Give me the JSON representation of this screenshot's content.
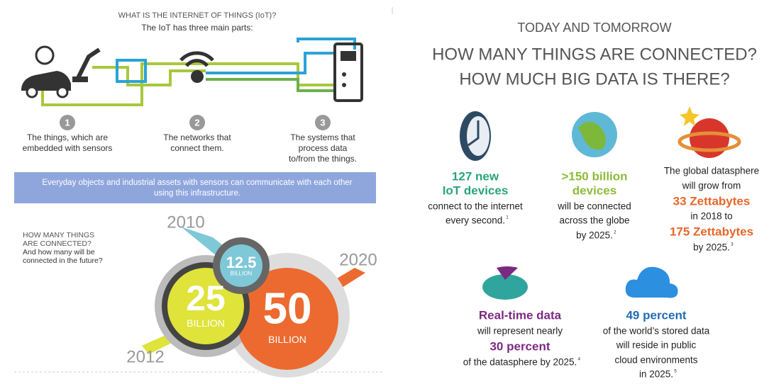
{
  "left": {
    "title": "WHAT IS THE INTERNET OF THINGS (IoT)?",
    "subtitle": "The IoT has three main parts:",
    "parts": [
      {
        "number": "1",
        "lines": [
          "The things, which are",
          "embedded with sensors"
        ]
      },
      {
        "number": "2",
        "lines": [
          "The networks that",
          "connect them."
        ]
      },
      {
        "number": "3",
        "lines": [
          "The systems that",
          "process data",
          "to/from the things."
        ]
      }
    ],
    "banner": [
      "Everyday objects and industrial assets with sensors can communicate with each other",
      "using this infrastructure."
    ],
    "question": [
      "HOW MANY THINGS",
      "ARE CONNECTED?",
      "And how many will be",
      "connected in the future?"
    ],
    "bubbles": [
      {
        "year": "2012",
        "value": "25",
        "unit": "BILLION"
      },
      {
        "year": "2020",
        "value": "50",
        "unit": "BILLION"
      },
      {
        "year": "2010",
        "value": "12.5",
        "unit": "BILLION"
      }
    ]
  },
  "right": {
    "kicker": "TODAY AND TOMORROW",
    "headline": [
      "HOW MANY THINGS ARE CONNECTED?",
      "HOW MUCH BIG DATA IS THERE?"
    ],
    "stats": [
      {
        "color": "#2aa37a",
        "note": "1",
        "lines": [
          {
            "text": "127 new",
            "accent": true
          },
          {
            "text": "IoT devices",
            "accent": true
          },
          {
            "text": "connect to the internet",
            "accent": false
          },
          {
            "text": "every second.",
            "accent": false
          }
        ]
      },
      {
        "color": "#8dbb3a",
        "note": "2",
        "lines": [
          {
            "text": ">150 billion",
            "accent": true
          },
          {
            "text": "devices",
            "accent": true
          },
          {
            "text": "will be connected",
            "accent": false
          },
          {
            "text": "across the globe",
            "accent": false
          },
          {
            "text": "by 2025.",
            "accent": false
          }
        ]
      },
      {
        "color": "#e8662a",
        "note": "3",
        "lines": [
          {
            "text": "The global datasphere",
            "accent": false
          },
          {
            "text": "will grow from",
            "accent": false
          },
          {
            "text": "33 Zettabytes",
            "accent": true
          },
          {
            "text": "in 2018 to",
            "accent": false
          },
          {
            "text": "175 Zettabytes",
            "accent": true
          },
          {
            "text": "by 2025.",
            "accent": false
          }
        ]
      },
      {
        "color": "#7b2a82",
        "note": "4",
        "lines": [
          {
            "text": "Real-time data",
            "accent": true
          },
          {
            "text": "will represent nearly",
            "accent": false
          },
          {
            "text": "30 percent",
            "accent": true
          },
          {
            "text": "of the datasphere by 2025.",
            "accent": false
          }
        ]
      },
      {
        "color": "#1f6db4",
        "note": "5",
        "lines": [
          {
            "text": "49 percent",
            "accent": true
          },
          {
            "text": "of the world’s stored data",
            "accent": false
          },
          {
            "text": "will reside in public",
            "accent": false
          },
          {
            "text": "cloud environments",
            "accent": false
          },
          {
            "text": "in 2025.",
            "accent": false
          }
        ]
      }
    ]
  }
}
